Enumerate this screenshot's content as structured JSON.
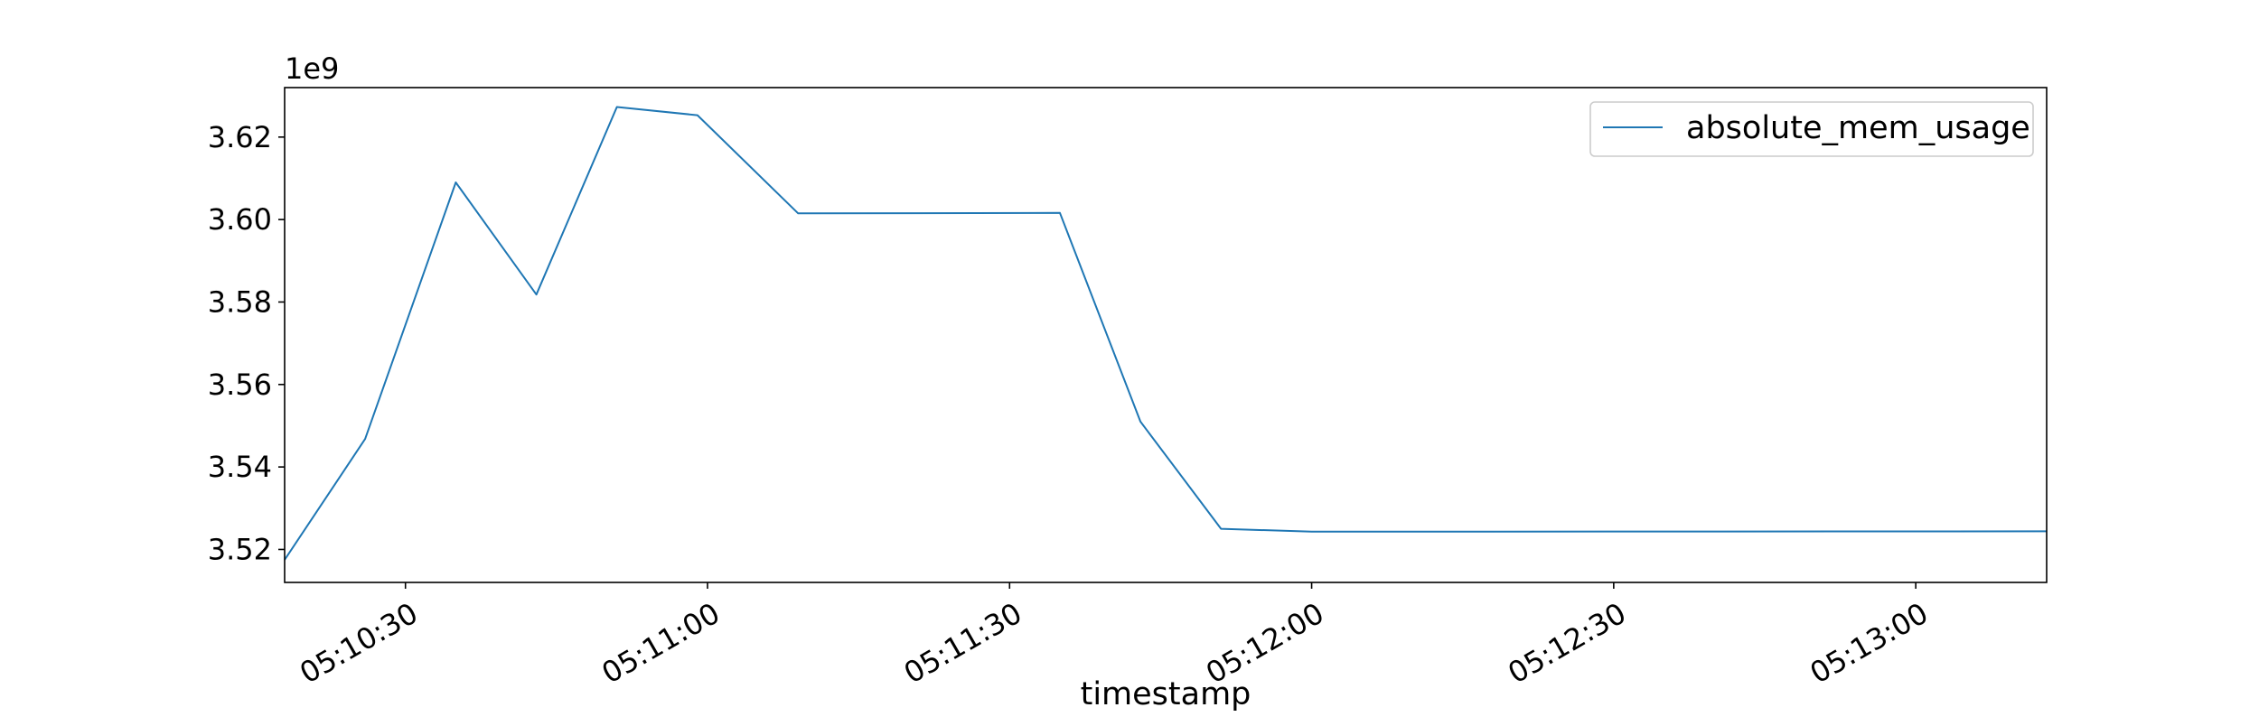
{
  "chart_data": {
    "type": "line",
    "title": "",
    "xlabel": "timestamp",
    "ylabel": "",
    "y_offset_label": "1e9",
    "x": [
      "05:10:18",
      "05:10:26",
      "05:10:35",
      "05:10:43",
      "05:10:51",
      "05:10:59",
      "05:11:09",
      "05:11:35",
      "05:11:43",
      "05:11:51",
      "05:12:00",
      "05:13:13"
    ],
    "series": [
      {
        "name": "absolute_mem_usage",
        "color": "#1f77b4",
        "values": [
          3.5175,
          3.5468,
          3.609,
          3.5818,
          3.6273,
          3.6253,
          3.6015,
          3.6016,
          3.551,
          3.525,
          3.5243,
          3.5244
        ]
      }
    ],
    "xlim": [
      "05:10:18",
      "05:13:13"
    ],
    "ylim": [
      3.512,
      3.632
    ],
    "x_ticks": [
      "05:10:30",
      "05:11:00",
      "05:11:30",
      "05:12:00",
      "05:12:30",
      "05:13:00"
    ],
    "y_ticks": [
      3.52,
      3.54,
      3.56,
      3.58,
      3.6,
      3.62
    ],
    "y_tick_labels": [
      "3.52",
      "3.54",
      "3.56",
      "3.58",
      "3.60",
      "3.62"
    ],
    "legend_position": "top-right",
    "grid": false
  }
}
